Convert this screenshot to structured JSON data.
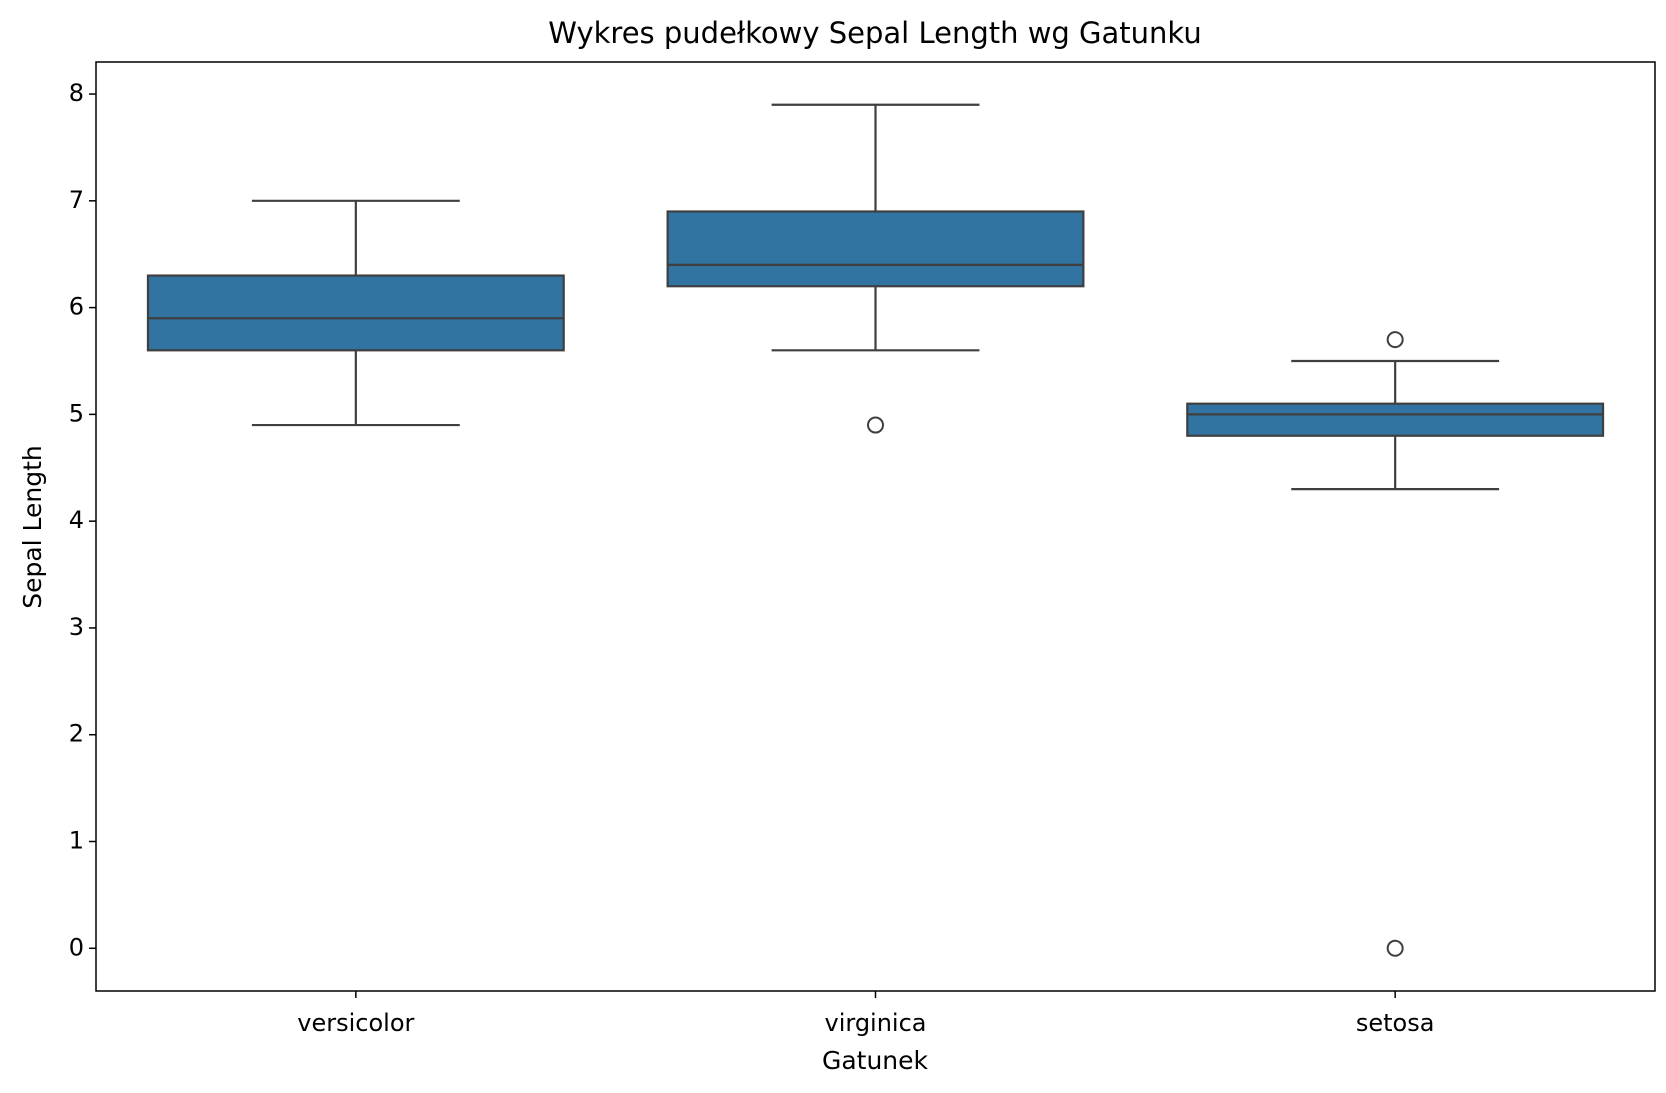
{
  "chart_data": {
    "type": "box",
    "title": "Wykres pudełkowy Sepal Length wg Gatunku",
    "x_label": "Gatunek",
    "y_label": "Sepal Length",
    "categories": [
      "versicolor",
      "virginica",
      "setosa"
    ],
    "color": "#3274a1",
    "boxes": [
      {
        "whislo": 4.9,
        "q1": 5.6,
        "med": 5.9,
        "q3": 6.3,
        "whishi": 7.0,
        "fliers": []
      },
      {
        "whislo": 5.6,
        "q1": 6.2,
        "med": 6.4,
        "q3": 6.9,
        "whishi": 7.9,
        "fliers": [
          4.9
        ]
      },
      {
        "whislo": 4.3,
        "q1": 4.8,
        "med": 5.0,
        "q3": 5.1,
        "whishi": 5.5,
        "fliers": [
          5.7,
          0
        ]
      }
    ],
    "ylim": [
      -0.4,
      8.3
    ],
    "yticks": [
      0,
      1,
      2,
      3,
      4,
      5,
      6,
      7,
      8
    ]
  }
}
